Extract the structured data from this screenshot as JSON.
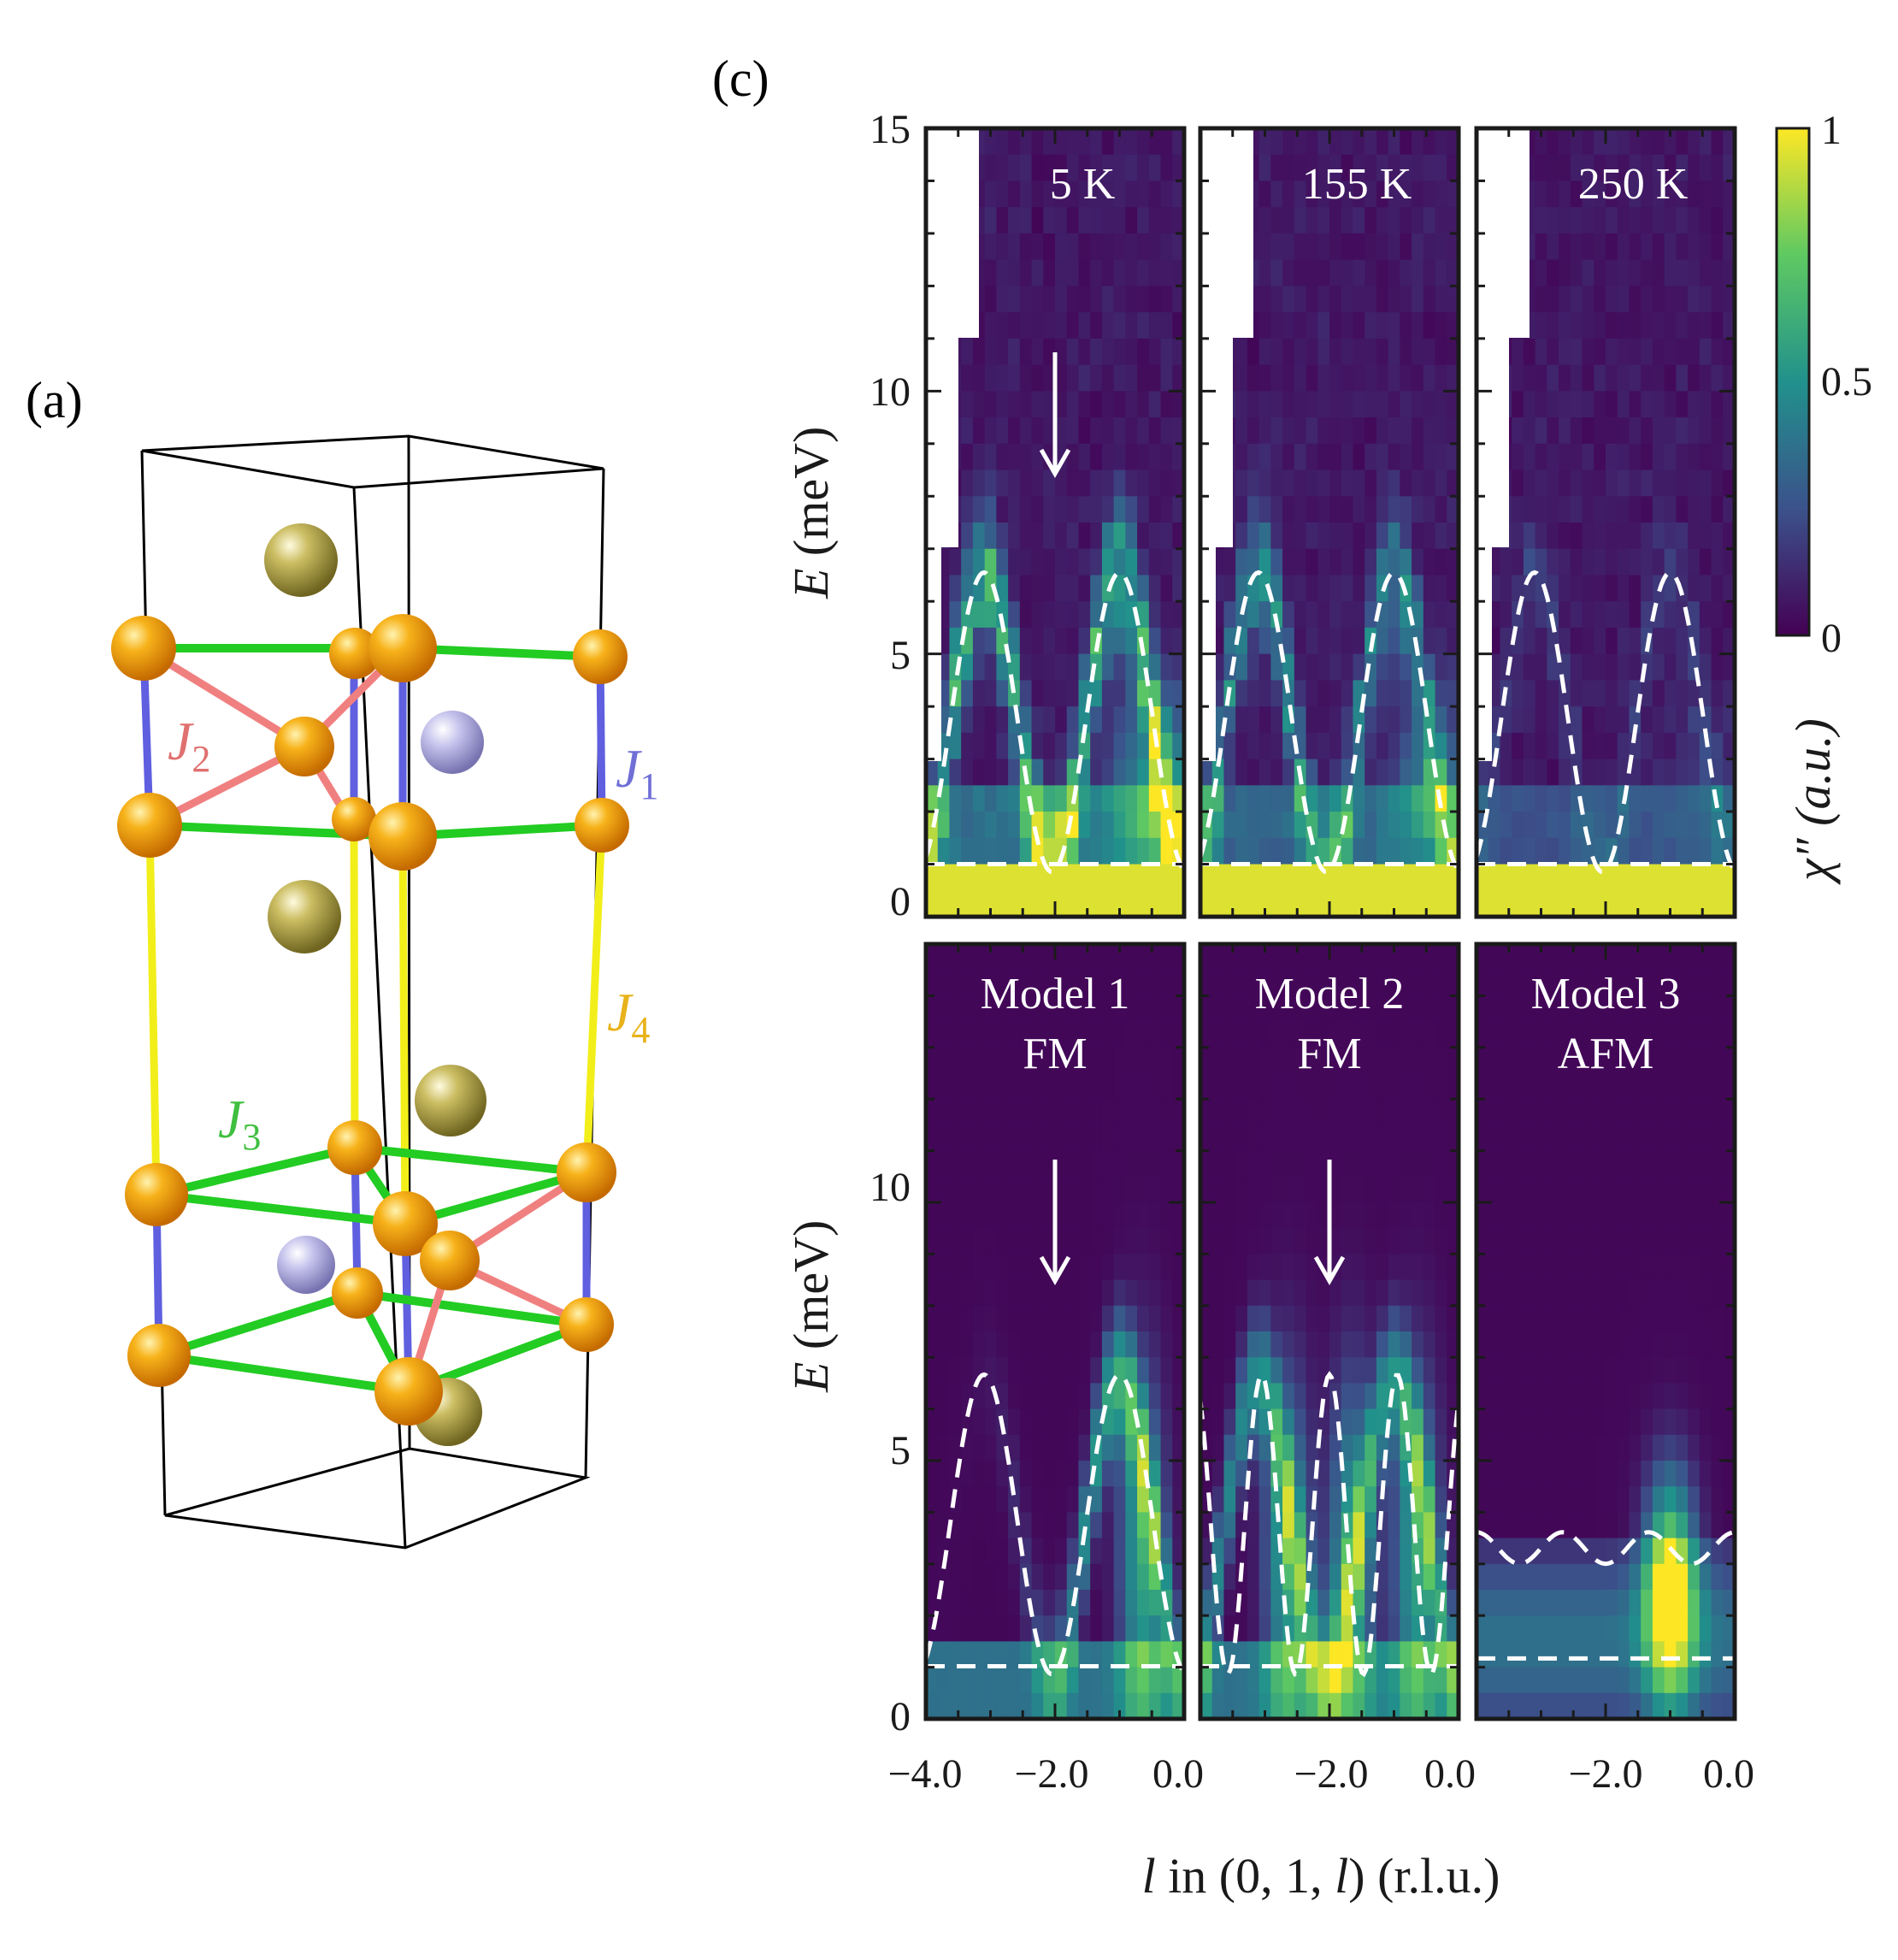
{
  "figure": {
    "panel_a_label": "(a)",
    "panel_c_label": "(c)"
  },
  "structure": {
    "exchange_labels": [
      {
        "id": "J1",
        "base": "J",
        "sub": "1",
        "color": "#6f6fd6"
      },
      {
        "id": "J2",
        "base": "J",
        "sub": "2",
        "color": "#e0706f"
      },
      {
        "id": "J3",
        "base": "J",
        "sub": "3",
        "color": "#3fbf3f"
      },
      {
        "id": "J4",
        "base": "J",
        "sub": "4",
        "color": "#e8b21a"
      }
    ],
    "colors": {
      "mn_atom": "#f2a20c",
      "gold_atom": "#b8a94a",
      "lavender_atom": "#b9b6e0",
      "bond_J1": "#5f5fe0",
      "bond_J2": "#f08080",
      "bond_J3": "#22cc22",
      "bond_J4": "#f2ee1a",
      "cell_edge": "#000000"
    }
  },
  "axes": {
    "y_label_italic": "E",
    "y_label_rest": " (meV)",
    "x_label_italic": "l",
    "x_label_mid": " in (0, 1, ",
    "x_label_italic2": "l",
    "x_label_end": ") (r.l.u.)",
    "y_ticks_top": [
      "15",
      "10",
      "5",
      "0"
    ],
    "y_ticks_bottom": [
      "10",
      "5",
      "0"
    ],
    "x_ticks_first": [
      "−4.0",
      "−2.0",
      "0.0"
    ],
    "x_ticks_other": [
      "−2.0",
      "0.0"
    ]
  },
  "colorbar": {
    "label": "χ″ (a.u.)",
    "ticks": [
      "1",
      "0.5",
      "0"
    ],
    "stops": [
      "#440154",
      "#3b528b",
      "#21918c",
      "#5ec962",
      "#fde725"
    ]
  },
  "chart_data": [
    {
      "type": "heatmap",
      "title": "5 K",
      "x_range": [
        -4.0,
        0.0
      ],
      "y_range": [
        0,
        15
      ],
      "ylabel": "E (meV)",
      "arrow_at_l": -2.0,
      "feature": "dispersive branches peaking near 6.5 meV, strong intensity below ~1 meV"
    },
    {
      "type": "heatmap",
      "title": "155 K",
      "x_range": [
        -4.0,
        0.0
      ],
      "y_range": [
        0,
        15
      ],
      "feature": "weaker dispersive branches, strong intensity below ~1 meV"
    },
    {
      "type": "heatmap",
      "title": "250 K",
      "x_range": [
        -4.0,
        0.0
      ],
      "y_range": [
        0,
        15
      ],
      "feature": "mostly featureless, strong intensity below ~1 meV"
    },
    {
      "type": "heatmap",
      "title_lines": [
        "Model 1",
        "FM"
      ],
      "x_range": [
        -4.0,
        0.0
      ],
      "y_range": [
        0,
        15
      ],
      "ylabel": "E (meV)",
      "arrow_at_l": -2.0
    },
    {
      "type": "heatmap",
      "title_lines": [
        "Model 2",
        "FM"
      ],
      "x_range": [
        -4.0,
        0.0
      ],
      "y_range": [
        0,
        15
      ],
      "arrow_at_l": -2.0
    },
    {
      "type": "heatmap",
      "title_lines": [
        "Model 3",
        "AFM"
      ],
      "x_range": [
        -4.0,
        0.0
      ],
      "y_range": [
        0,
        15
      ]
    }
  ]
}
